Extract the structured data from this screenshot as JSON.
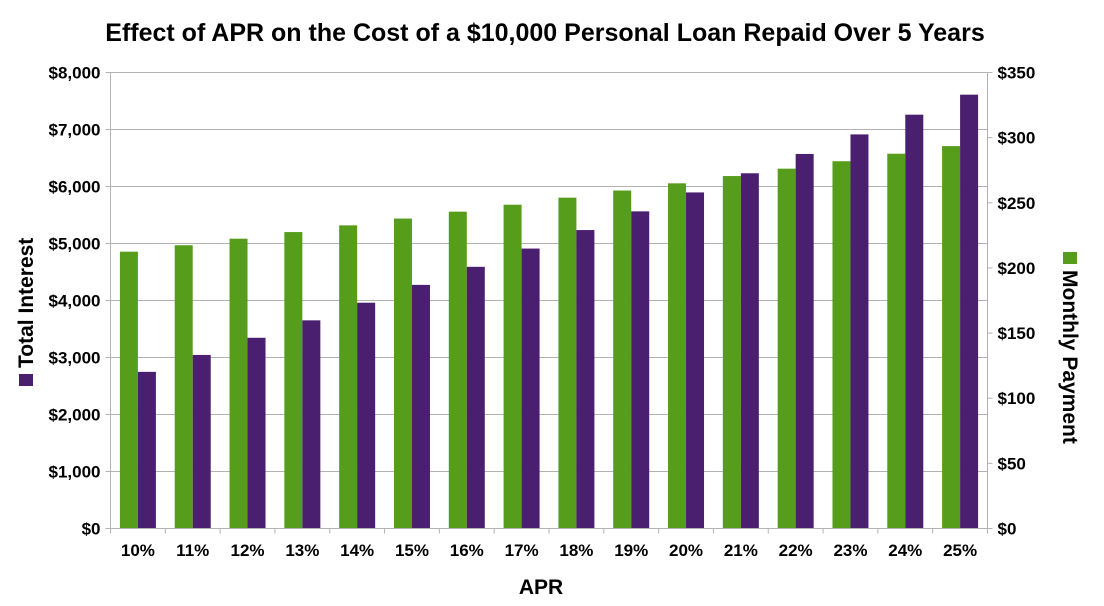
{
  "chart_data": {
    "type": "bar",
    "title": "Effect of APR on the Cost of a $10,000 Personal Loan Repaid Over 5 Years",
    "xlabel": "APR",
    "categories": [
      "10%",
      "11%",
      "12%",
      "13%",
      "14%",
      "15%",
      "16%",
      "17%",
      "18%",
      "19%",
      "20%",
      "21%",
      "22%",
      "23%",
      "24%",
      "25%"
    ],
    "series": [
      {
        "name": "Monthly Payment",
        "axis": "right",
        "color": "#579d1c",
        "values": [
          212.47,
          217.42,
          222.44,
          227.53,
          232.68,
          237.9,
          243.18,
          248.52,
          253.93,
          259.41,
          264.94,
          270.53,
          276.18,
          281.9,
          287.67,
          293.51
        ]
      },
      {
        "name": "Total Interest",
        "axis": "left",
        "color": "#4b1f6f",
        "values": [
          2748,
          3045,
          3346,
          3652,
          3961,
          4274,
          4591,
          4911,
          5236,
          5564,
          5896,
          6232,
          6571,
          6914,
          7260,
          7611
        ]
      }
    ],
    "y_left": {
      "label": "Total Interest",
      "ylim": [
        0,
        8000
      ],
      "ticks": [
        0,
        1000,
        2000,
        3000,
        4000,
        5000,
        6000,
        7000,
        8000
      ],
      "tick_labels": [
        "$0",
        "$1,000",
        "$2,000",
        "$3,000",
        "$4,000",
        "$5,000",
        "$6,000",
        "$7,000",
        "$8,000"
      ]
    },
    "y_right": {
      "label": "Monthly Payment",
      "ylim": [
        0,
        350
      ],
      "ticks": [
        0,
        50,
        100,
        150,
        200,
        250,
        300,
        350
      ],
      "tick_labels": [
        "$0",
        "$50",
        "$100",
        "$150",
        "$200",
        "$250",
        "$300",
        "$350"
      ]
    },
    "grid": true
  }
}
